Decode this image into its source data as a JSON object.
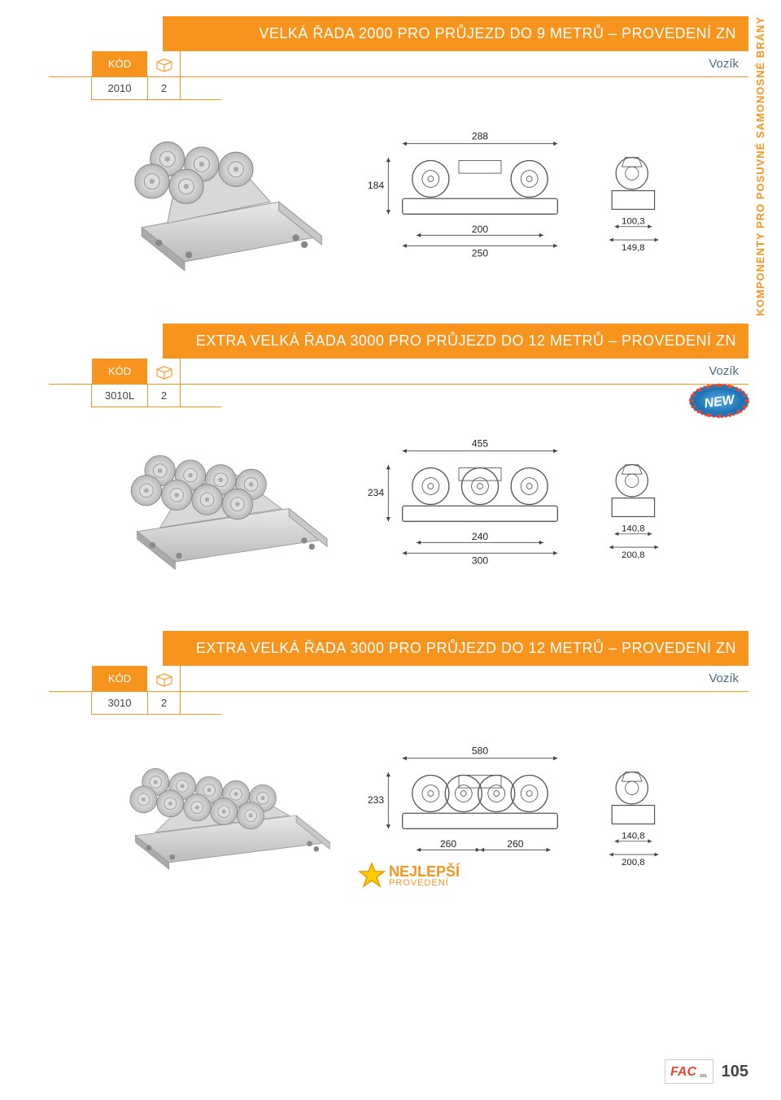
{
  "sideLabel": "KOMPONENTY PRO POSUVNÉ SAMONOSNÉ BRÁNY",
  "sections": [
    {
      "title": "VELKÁ ŘADA 2000 PRO PRŮJEZD DO 9 METRŮ – PROVEDENÍ ZN",
      "kodLabel": "KÓD",
      "desc": "Vozík",
      "code": "2010",
      "qty": "2",
      "hasNew": false,
      "hasStar": false,
      "wheels": 5,
      "dims": {
        "topW": "288",
        "sideH": "184",
        "innerW": "200",
        "outerW": "250",
        "profW": "100,3",
        "profH": "149,8"
      }
    },
    {
      "title": "EXTRA VELKÁ ŘADA 3000 PRO PRŮJEZD DO 12 METRŮ – PROVEDENÍ ZN",
      "kodLabel": "KÓD",
      "desc": "Vozík",
      "code": "3010L",
      "qty": "2",
      "hasNew": true,
      "hasStar": false,
      "wheels": 8,
      "dims": {
        "topW": "455",
        "sideH": "234",
        "innerW": "240",
        "outerW": "300",
        "profW": "140,8",
        "profH": "200,8"
      }
    },
    {
      "title": "EXTRA VELKÁ ŘADA 3000 PRO PRŮJEZD DO 12 METRŮ – PROVEDENÍ ZN",
      "kodLabel": "KÓD",
      "desc": "Vozík",
      "code": "3010",
      "qty": "2",
      "hasNew": false,
      "hasStar": true,
      "wheels": 10,
      "dims": {
        "topW": "580",
        "sideH": "233",
        "innerW": "260",
        "innerW2": "260",
        "profW": "140,8",
        "profH": "200,8"
      }
    }
  ],
  "star": {
    "line1": "NEJLEPŠÍ",
    "line2": "PROVEDENÍ"
  },
  "newLabel": "NEW",
  "pageNumber": "105",
  "brand": "FAC",
  "brandSuffix": "SRL",
  "colors": {
    "accent": "#f7941e",
    "txt": "#4a6a8a"
  }
}
